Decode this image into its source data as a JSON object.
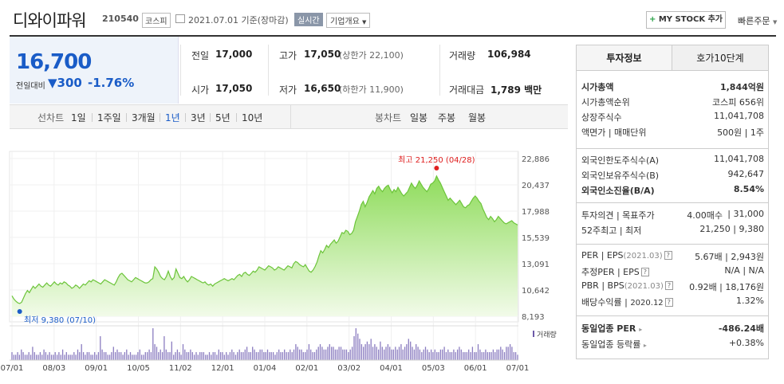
{
  "header": {
    "company": "디와이파워",
    "code": "210540",
    "market": "코스피",
    "date_text": "2021.07.01 기준(장마감)",
    "realtime": "실시간",
    "overview": "기업개요",
    "mystock": "MY STOCK 추가",
    "mystock_plus": "+",
    "quick_order": "빠른주문"
  },
  "price": {
    "current": "16,700",
    "prev_label": "전일대비",
    "change": "▼300",
    "change_pct": "-1.76%",
    "direction": "down"
  },
  "quote": {
    "prev_close_label": "전일",
    "prev_close": "17,000",
    "open_label": "시가",
    "open": "17,050",
    "high_label": "고가",
    "high": "17,050",
    "upper_limit": "(상한가 22,100)",
    "low_label": "저가",
    "low": "16,650",
    "lower_limit": "(하한가 11,900)",
    "volume_label": "거래량",
    "volume": "106,984",
    "amount_label": "거래대금",
    "amount": "1,789 백만"
  },
  "periods": {
    "line_label": "선차트",
    "line_items": [
      "1일",
      "1주일",
      "3개월",
      "1년",
      "3년",
      "5년",
      "10년"
    ],
    "line_selected": "1년",
    "candle_label": "봉차트",
    "candle_items": [
      "일봉",
      "주봉",
      "월봉"
    ]
  },
  "chart_data": {
    "type": "area",
    "y_ticks": [
      "22,886",
      "20,437",
      "17,988",
      "15,539",
      "13,091",
      "10,642",
      "8,193"
    ],
    "ylim": [
      8193,
      22886
    ],
    "x_ticks": [
      "07/01",
      "08/03",
      "09/01",
      "10/05",
      "11/02",
      "12/01",
      "01/04",
      "02/01",
      "03/02",
      "04/01",
      "05/03",
      "06/01",
      "07/01"
    ],
    "max_label": "최고 21,250 (04/28)",
    "min_label": "최저 9,380 (07/10)",
    "volume_label": "거래량",
    "series": [
      {
        "values": [
          10100,
          9800,
          9600,
          9450,
          9380,
          9500,
          9900,
          10300,
          10600,
          10400,
          10700,
          11000,
          10800,
          11000,
          11200,
          11000,
          10900,
          11100,
          11300,
          11100,
          11000,
          11200,
          11400,
          11200,
          11100,
          11300,
          11200,
          11400,
          11300,
          11100,
          11000,
          10800,
          10900,
          11100,
          11000,
          10800,
          11000,
          11200,
          11100,
          11300,
          11500,
          11400,
          11600,
          11500,
          11400,
          11300,
          11200,
          11400,
          11600,
          11500,
          11400,
          11300,
          11200,
          11100,
          11400,
          11800,
          12100,
          12200,
          12000,
          11800,
          11600,
          11500,
          11400,
          11600,
          11800,
          11700,
          11600,
          11500,
          11400,
          11300,
          11300,
          11400,
          11600,
          11700,
          12800,
          12600,
          12300,
          11900,
          11700,
          11600,
          11900,
          12400,
          11900,
          11600,
          11800,
          12600,
          12200,
          11800,
          11700,
          11900,
          11600,
          11400,
          11600,
          11900,
          11800,
          11700,
          11600,
          11500,
          11400,
          11300,
          11400,
          11200,
          11100,
          11200,
          11000,
          11200,
          11300,
          11400,
          11500,
          11600,
          11700,
          11600,
          11500,
          11600,
          11700,
          11600,
          11800,
          12000,
          12100,
          11900,
          12200,
          12300,
          12100,
          12000,
          12200,
          12400,
          12300,
          12500,
          12800,
          12700,
          12600,
          12500,
          12700,
          12900,
          12800,
          12700,
          12500,
          12600,
          12800,
          12700,
          12600,
          12500,
          12700,
          12900,
          12800,
          12700,
          13100,
          13300,
          13200,
          13000,
          12900,
          12800,
          13000,
          12700,
          12400,
          12300,
          12500,
          12800,
          13200,
          13800,
          14300,
          14100,
          14400,
          14800,
          14600,
          14900,
          15100,
          15300,
          15000,
          15200,
          15600,
          16000,
          15900,
          16200,
          16100,
          15800,
          15900,
          16200,
          17000,
          17500,
          18000,
          18600,
          18900,
          18400,
          18800,
          19300,
          19600,
          19900,
          19600,
          20100,
          20300,
          20000,
          19800,
          20100,
          20300,
          20400,
          20000,
          19700,
          20000,
          19800,
          20200,
          19900,
          19600,
          19400,
          19600,
          19800,
          20200,
          20600,
          20300,
          20100,
          20400,
          20800,
          20500,
          20200,
          20000,
          19800,
          20100,
          20500,
          20600,
          20800,
          21250,
          20900,
          20600,
          20200,
          19800,
          19400,
          19000,
          19200,
          19000,
          18800,
          18600,
          18800,
          19000,
          18700,
          18400,
          18300,
          18500,
          18600,
          18900,
          19200,
          19400,
          19200,
          18900,
          18700,
          18200,
          17800,
          17400,
          17200,
          17500,
          17300,
          17000,
          17200,
          17500,
          17300,
          17100,
          16900,
          16800,
          16900,
          17000,
          17100,
          16900,
          16800,
          16700
        ]
      }
    ],
    "volume": [
      3,
      2,
      2,
      3,
      2,
      4,
      3,
      2,
      2,
      3,
      2,
      5,
      3,
      2,
      2,
      3,
      2,
      4,
      3,
      2,
      3,
      2,
      2,
      3,
      2,
      3,
      2,
      4,
      2,
      3,
      2,
      2,
      2,
      3,
      2,
      4,
      3,
      6,
      3,
      2,
      3,
      3,
      2,
      2,
      3,
      2,
      3,
      9,
      4,
      3,
      3,
      2,
      2,
      3,
      5,
      3,
      4,
      3,
      3,
      2,
      3,
      4,
      2,
      3,
      2,
      2,
      2,
      3,
      4,
      2,
      2,
      3,
      3,
      4,
      3,
      12,
      6,
      5,
      3,
      4,
      3,
      9,
      4,
      3,
      3,
      7,
      2,
      3,
      4,
      3,
      2,
      6,
      4,
      3,
      3,
      4,
      3,
      2,
      3,
      2,
      3,
      3,
      3,
      2,
      2,
      3,
      2,
      3,
      3,
      2,
      4,
      3,
      3,
      2,
      3,
      2,
      3,
      4,
      3,
      2,
      3,
      4,
      3,
      3,
      4,
      5,
      3,
      3,
      5,
      4,
      3,
      3,
      4,
      4,
      3,
      3,
      4,
      3,
      3,
      3,
      2,
      3,
      4,
      3,
      3,
      4,
      3,
      3,
      4,
      3,
      4,
      6,
      5,
      4,
      4,
      3,
      3,
      4,
      6,
      4,
      3,
      3,
      4,
      5,
      6,
      5,
      4,
      4,
      5,
      6,
      5,
      5,
      4,
      4,
      5,
      5,
      4,
      4,
      4,
      3,
      4,
      5,
      9,
      12,
      10,
      8,
      6,
      5,
      6,
      7,
      6,
      8,
      5,
      6,
      5,
      4,
      7,
      5,
      4,
      5,
      6,
      5,
      4,
      4,
      5,
      4,
      5,
      6,
      4,
      5,
      6,
      8,
      7,
      5,
      4,
      6,
      5,
      4,
      3,
      4,
      5,
      4,
      3,
      4,
      3,
      4,
      3,
      3,
      4,
      4,
      5,
      3,
      4,
      3,
      3,
      4,
      3,
      4,
      5,
      4,
      3,
      3,
      3,
      4,
      3,
      5,
      3,
      3,
      6,
      4,
      3,
      3,
      4,
      3,
      3,
      3,
      4,
      3,
      4,
      4,
      5,
      4,
      3,
      5,
      5,
      6,
      5,
      3,
      3,
      2
    ]
  },
  "invest": {
    "tab_active": "투자정보",
    "tab_other": "호가10단계",
    "rows1": [
      {
        "label": "시가총액",
        "value": "1,844억원",
        "bold": true
      },
      {
        "label": "시가총액순위",
        "value": "코스피 656위"
      },
      {
        "label": "상장주식수",
        "value": "11,041,708"
      },
      {
        "label": "액면가 | 매매단위",
        "value": "500원 | 1주"
      }
    ],
    "rows2": [
      {
        "label": "외국인한도주식수(A)",
        "value": "11,041,708"
      },
      {
        "label": "외국인보유주식수(B)",
        "value": "942,647"
      },
      {
        "label": "외국인소진율(B/A)",
        "value": "8.54%",
        "bold": true
      }
    ],
    "opinion_label": "투자의견 | 목표주가",
    "opinion_value": "4.00매수",
    "target_price": "31,000",
    "w52_label": "52주최고 | 최저",
    "w52_value": "21,250 | 9,380",
    "per_label": "PER | EPS",
    "per_period": "(2021.03)",
    "per_value": "5.67배 | 2,943원",
    "est_label": "추정PER | EPS",
    "est_value": "N/A | N/A",
    "pbr_label": "PBR | BPS",
    "pbr_period": "(2021.03)",
    "pbr_value": "0.92배 | 18,176원",
    "div_label": "배당수익률 |",
    "div_period": "2020.12",
    "div_value": "1.32%",
    "sector_per_label": "동일업종 PER",
    "sector_per_value": "-486.24배",
    "sector_rate_label": "동일업종 등락률",
    "sector_rate_value": "+0.38%"
  }
}
